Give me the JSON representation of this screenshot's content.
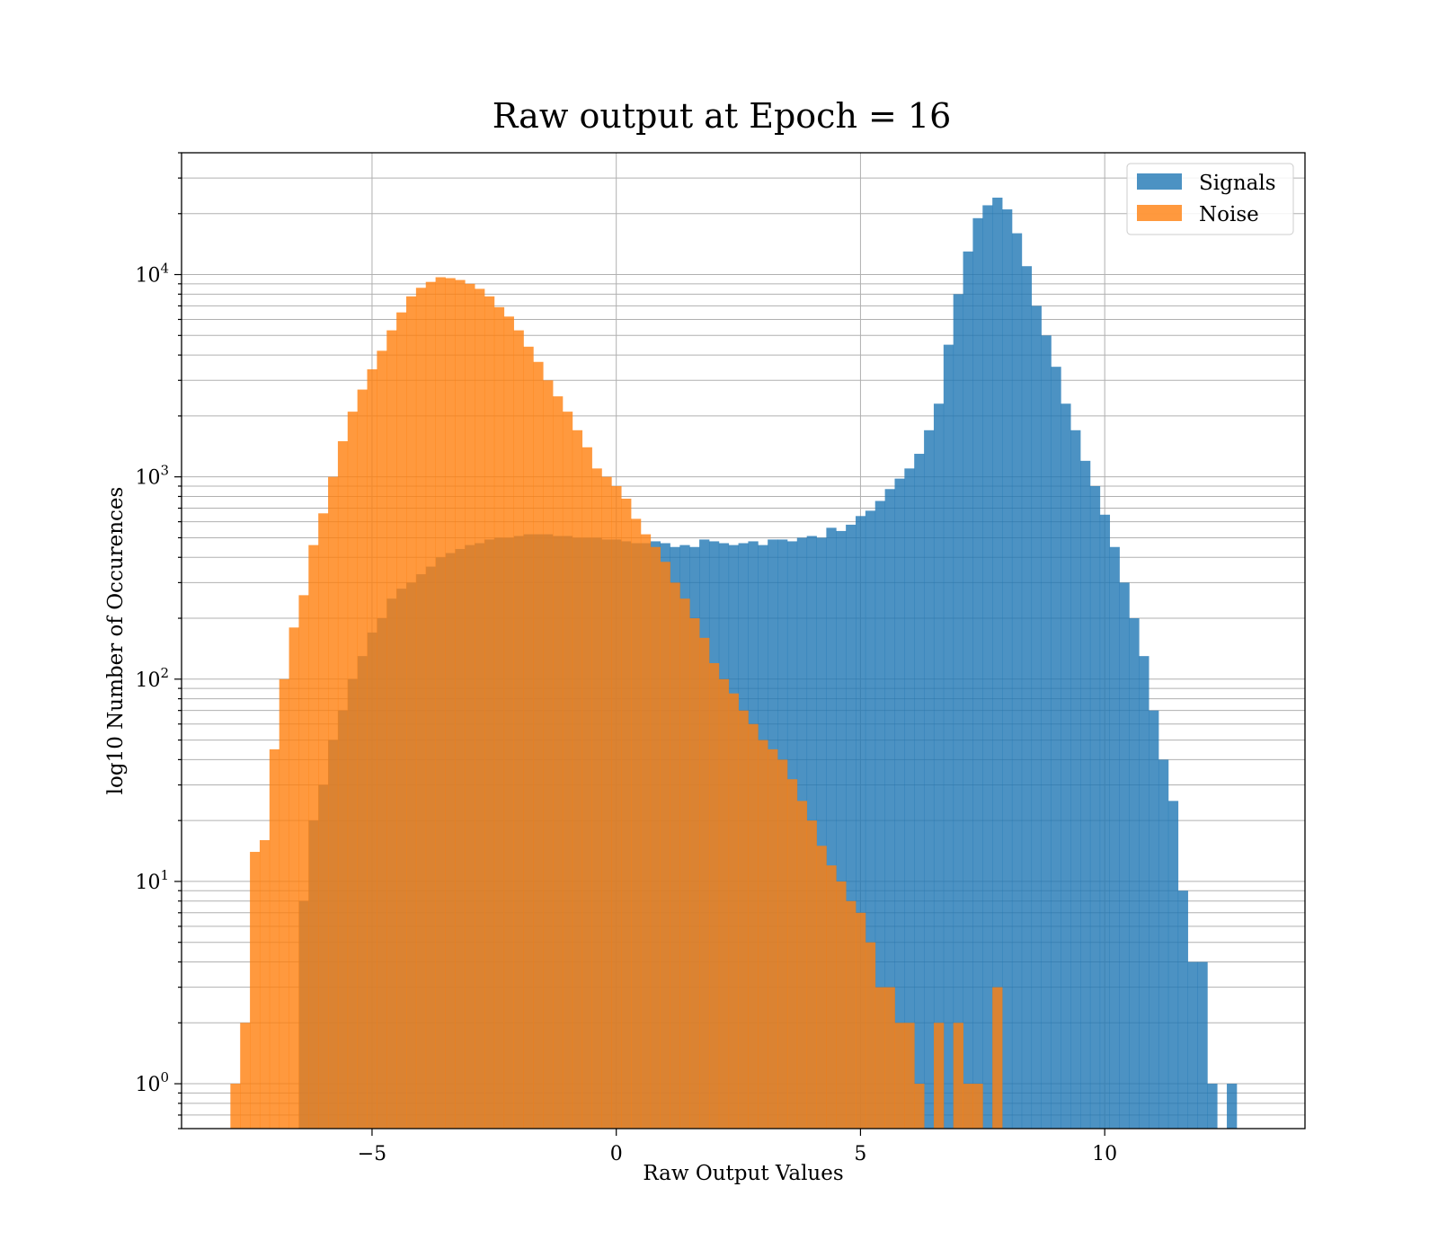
{
  "chart_data": {
    "type": "bar",
    "title": "Raw output at Epoch = 16",
    "xlabel": "Raw Output Values",
    "ylabel": "log10 Number of Occurences",
    "xlim": [
      -8.9,
      14.1
    ],
    "ylim": [
      0.6,
      40000
    ],
    "yscale": "log",
    "grid": true,
    "legend_position": "top-right",
    "x_ticks": [
      {
        "value": -5,
        "label": "−5"
      },
      {
        "value": 0,
        "label": "0"
      },
      {
        "value": 5,
        "label": "5"
      },
      {
        "value": 10,
        "label": "10"
      }
    ],
    "y_ticks": [
      {
        "value": 1,
        "base": "10",
        "exp": "0"
      },
      {
        "value": 10,
        "base": "10",
        "exp": "1"
      },
      {
        "value": 100,
        "base": "10",
        "exp": "2"
      },
      {
        "value": 1000,
        "base": "10",
        "exp": "3"
      },
      {
        "value": 10000,
        "base": "10",
        "exp": "4"
      }
    ],
    "series": [
      {
        "name": "Signals",
        "color": "#1f77b4",
        "opacity": 0.8,
        "bin_start": -6.5,
        "bin_width": 0.2,
        "values": [
          8,
          20,
          30,
          50,
          70,
          100,
          130,
          170,
          200,
          250,
          280,
          300,
          330,
          360,
          400,
          420,
          440,
          460,
          470,
          490,
          500,
          500,
          510,
          520,
          520,
          520,
          510,
          510,
          500,
          500,
          500,
          490,
          490,
          480,
          470,
          470,
          480,
          470,
          450,
          460,
          450,
          490,
          480,
          470,
          460,
          470,
          480,
          460,
          490,
          490,
          480,
          500,
          510,
          500,
          560,
          540,
          580,
          640,
          680,
          760,
          870,
          980,
          1100,
          1300,
          1700,
          2300,
          4500,
          8000,
          13000,
          19000,
          22000,
          24000,
          21000,
          16000,
          11000,
          7000,
          5000,
          3500,
          2300,
          1700,
          1200,
          900,
          650,
          450,
          300,
          200,
          130,
          70,
          40,
          25,
          9,
          4,
          4,
          1,
          0,
          1
        ]
      },
      {
        "name": "Noise",
        "color": "#ff7f0e",
        "opacity": 0.8,
        "bin_start": -7.9,
        "bin_width": 0.2,
        "values": [
          1,
          2,
          14,
          16,
          45,
          100,
          180,
          260,
          460,
          660,
          1000,
          1500,
          2100,
          2700,
          3400,
          4200,
          5300,
          6500,
          7800,
          8600,
          9200,
          9700,
          9600,
          9400,
          9000,
          8500,
          7800,
          6900,
          6200,
          5300,
          4400,
          3700,
          3000,
          2500,
          2100,
          1700,
          1400,
          1100,
          1000,
          900,
          780,
          620,
          520,
          450,
          380,
          300,
          250,
          200,
          160,
          120,
          100,
          85,
          70,
          60,
          50,
          45,
          40,
          32,
          25,
          20,
          15,
          12,
          10,
          8,
          7,
          5,
          3,
          3,
          2,
          2,
          1,
          0,
          2,
          0,
          2,
          1,
          1,
          0,
          3
        ]
      }
    ]
  }
}
